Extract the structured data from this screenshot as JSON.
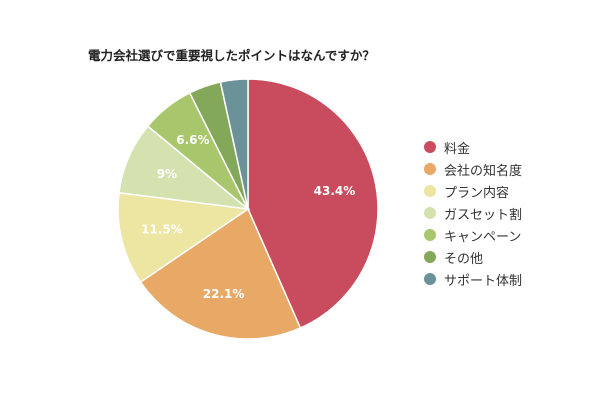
{
  "chart_data": {
    "type": "pie",
    "title": "電力会社選びで重要視したポイントはなんですか？",
    "categories": [
      "料金",
      "会社の知名度",
      "プラン内容",
      "ガスセット割",
      "キャンペーン",
      "その他",
      "サポート体制"
    ],
    "values": [
      43.4,
      22.1,
      11.5,
      9.0,
      6.6,
      4.0,
      3.4
    ],
    "value_labels": [
      "43.4%",
      "22.1%",
      "11.5%",
      "9%",
      "6.6%",
      "",
      ""
    ],
    "colors": [
      "#C94C5E",
      "#E8A866",
      "#EDE5A2",
      "#D4E2B0",
      "#A8C66C",
      "#84A85A",
      "#6B9299"
    ],
    "legend_position": "right",
    "start_angle": "12 o'clock",
    "direction": "clockwise",
    "unit": "%"
  },
  "title": "電力会社選びで重要視したポイントはなんですか？",
  "legend": {
    "items": [
      {
        "label": "料金",
        "color": "#C94C5E"
      },
      {
        "label": "会社の知名度",
        "color": "#E8A866"
      },
      {
        "label": "プラン内容",
        "color": "#EDE5A2"
      },
      {
        "label": "ガスセット割",
        "color": "#D4E2B0"
      },
      {
        "label": "キャンペーン",
        "color": "#A8C66C"
      },
      {
        "label": "その他",
        "color": "#84A85A"
      },
      {
        "label": "サポート体制",
        "color": "#6B9299"
      }
    ]
  }
}
